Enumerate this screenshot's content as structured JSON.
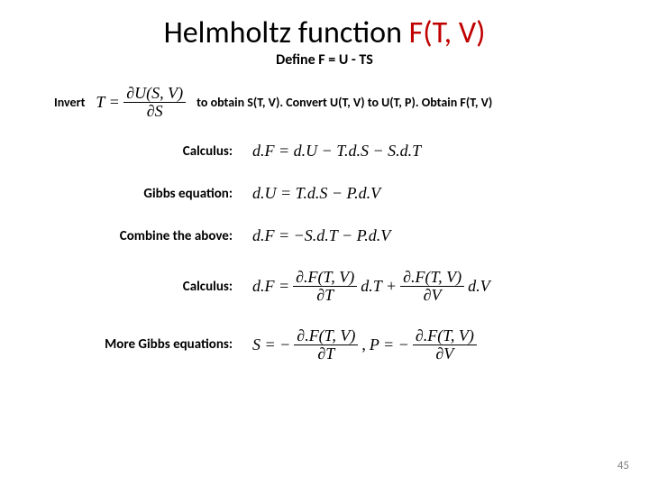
{
  "title": {
    "left": "Helmholtz function ",
    "right": "F(T, V)"
  },
  "subtitle": "Define F = U - TS",
  "invert": {
    "pre": "Invert",
    "T_eq": "T =",
    "num": "∂U(S, V)",
    "den": "∂S",
    "post": "to obtain S(T, V).  Convert U(T, V) to U(T, P).  Obtain F(T, V)"
  },
  "rows": {
    "calc1": {
      "label": "Calculus:",
      "eq": "d.F = d.U − T.d.S − S.d.T"
    },
    "gibbs": {
      "label": "Gibbs equation:",
      "eq": "d.U = T.d.S − P.d.V"
    },
    "combine": {
      "label": "Combine the above:",
      "eq": "d.F = −S.d.T − P.d.V"
    },
    "calc2": {
      "label": "Calculus:",
      "pre": "d.F =",
      "t1_num": "∂.F(T, V)",
      "t1_den": "∂T",
      "mid1": "d.T +",
      "t2_num": "∂.F(T, V)",
      "t2_den": "∂V",
      "post": "d.V"
    },
    "more": {
      "label": "More Gibbs equations:",
      "s_pre": "S = −",
      "s_num": "∂.F(T, V)",
      "s_den": "∂T",
      "sep": ",   ",
      "p_pre": "P = −",
      "p_num": "∂.F(T, V)",
      "p_den": "∂V"
    }
  },
  "page": "45",
  "colors": {
    "red": "#c00000",
    "text": "#000000",
    "page": "#808080",
    "bg": "#ffffff"
  },
  "fonts": {
    "title_size": 34,
    "subtitle_size": 16,
    "body_size": 15,
    "eq_size": 18
  }
}
